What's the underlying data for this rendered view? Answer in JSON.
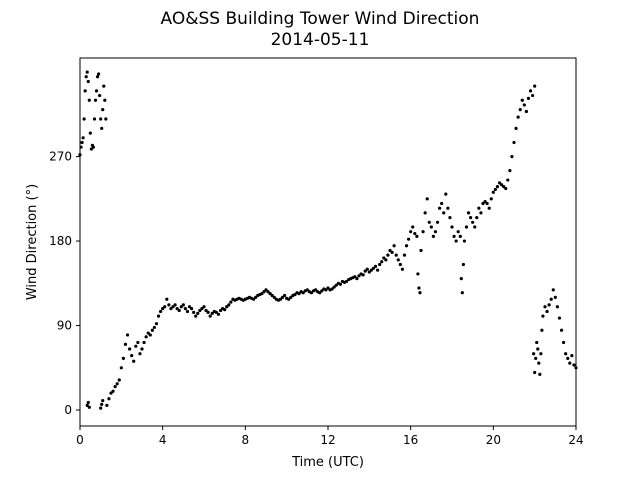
{
  "chart_data": {
    "type": "scatter",
    "title": "AO&SS Building Tower Wind Direction",
    "subtitle": "2014-05-11",
    "xlabel": "Time (UTC)",
    "ylabel": "Wind Direction (°)",
    "xlim": [
      0,
      24
    ],
    "ylim": [
      -17,
      375
    ],
    "xticks": [
      0,
      4,
      8,
      12,
      16,
      20,
      24
    ],
    "xtick_labels": [
      "0",
      "4",
      "8",
      "12",
      "16",
      "20",
      "24"
    ],
    "yticks": [
      0,
      90,
      180,
      270
    ],
    "ytick_labels": [
      "0",
      "90",
      "180",
      "270"
    ],
    "grid": false,
    "marker_color": "#000000",
    "points": [
      [
        0.0,
        272
      ],
      [
        0.05,
        280
      ],
      [
        0.1,
        285
      ],
      [
        0.15,
        290
      ],
      [
        0.2,
        310
      ],
      [
        0.25,
        340
      ],
      [
        0.3,
        355
      ],
      [
        0.35,
        360
      ],
      [
        0.4,
        350
      ],
      [
        0.45,
        330
      ],
      [
        0.5,
        295
      ],
      [
        0.55,
        278
      ],
      [
        0.6,
        282
      ],
      [
        0.65,
        280
      ],
      [
        0.7,
        310
      ],
      [
        0.75,
        330
      ],
      [
        0.8,
        340
      ],
      [
        0.85,
        355
      ],
      [
        0.9,
        358
      ],
      [
        0.95,
        335
      ],
      [
        1.0,
        310
      ],
      [
        1.05,
        300
      ],
      [
        1.1,
        320
      ],
      [
        1.15,
        345
      ],
      [
        1.2,
        330
      ],
      [
        1.25,
        310
      ],
      [
        0.35,
        5
      ],
      [
        0.4,
        8
      ],
      [
        0.45,
        3
      ],
      [
        1.0,
        2
      ],
      [
        1.05,
        6
      ],
      [
        1.1,
        10
      ],
      [
        1.3,
        5
      ],
      [
        1.4,
        12
      ],
      [
        1.5,
        18
      ],
      [
        1.6,
        20
      ],
      [
        1.7,
        25
      ],
      [
        1.8,
        28
      ],
      [
        1.9,
        32
      ],
      [
        2.0,
        45
      ],
      [
        2.1,
        55
      ],
      [
        2.2,
        70
      ],
      [
        2.3,
        80
      ],
      [
        2.4,
        65
      ],
      [
        2.5,
        58
      ],
      [
        2.6,
        52
      ],
      [
        2.7,
        68
      ],
      [
        2.8,
        72
      ],
      [
        2.9,
        60
      ],
      [
        3.0,
        65
      ],
      [
        3.1,
        72
      ],
      [
        3.2,
        78
      ],
      [
        3.3,
        82
      ],
      [
        3.4,
        80
      ],
      [
        3.5,
        85
      ],
      [
        3.6,
        88
      ],
      [
        3.7,
        92
      ],
      [
        3.8,
        100
      ],
      [
        3.9,
        105
      ],
      [
        4.0,
        108
      ],
      [
        4.1,
        110
      ],
      [
        4.2,
        118
      ],
      [
        4.3,
        112
      ],
      [
        4.4,
        108
      ],
      [
        4.5,
        110
      ],
      [
        4.6,
        112
      ],
      [
        4.7,
        108
      ],
      [
        4.8,
        106
      ],
      [
        4.9,
        110
      ],
      [
        5.0,
        112
      ],
      [
        5.1,
        108
      ],
      [
        5.2,
        105
      ],
      [
        5.3,
        110
      ],
      [
        5.4,
        108
      ],
      [
        5.5,
        104
      ],
      [
        5.6,
        100
      ],
      [
        5.7,
        103
      ],
      [
        5.8,
        106
      ],
      [
        5.9,
        108
      ],
      [
        6.0,
        110
      ],
      [
        6.1,
        106
      ],
      [
        6.2,
        104
      ],
      [
        6.3,
        100
      ],
      [
        6.4,
        103
      ],
      [
        6.5,
        105
      ],
      [
        6.6,
        104
      ],
      [
        6.7,
        102
      ],
      [
        6.8,
        106
      ],
      [
        6.9,
        108
      ],
      [
        7.0,
        107
      ],
      [
        7.1,
        110
      ],
      [
        7.2,
        112
      ],
      [
        7.3,
        115
      ],
      [
        7.4,
        118
      ],
      [
        7.5,
        117
      ],
      [
        7.6,
        118
      ],
      [
        7.7,
        119
      ],
      [
        7.8,
        118
      ],
      [
        7.9,
        117
      ],
      [
        8.0,
        118
      ],
      [
        8.1,
        119
      ],
      [
        8.2,
        120
      ],
      [
        8.3,
        119
      ],
      [
        8.4,
        118
      ],
      [
        8.5,
        120
      ],
      [
        8.6,
        122
      ],
      [
        8.7,
        123
      ],
      [
        8.8,
        124
      ],
      [
        8.9,
        126
      ],
      [
        9.0,
        128
      ],
      [
        9.1,
        126
      ],
      [
        9.2,
        124
      ],
      [
        9.3,
        122
      ],
      [
        9.4,
        120
      ],
      [
        9.5,
        118
      ],
      [
        9.6,
        117
      ],
      [
        9.7,
        118
      ],
      [
        9.8,
        120
      ],
      [
        9.9,
        122
      ],
      [
        10.0,
        119
      ],
      [
        10.1,
        118
      ],
      [
        10.2,
        120
      ],
      [
        10.3,
        122
      ],
      [
        10.4,
        123
      ],
      [
        10.5,
        125
      ],
      [
        10.6,
        124
      ],
      [
        10.7,
        126
      ],
      [
        10.8,
        125
      ],
      [
        10.9,
        127
      ],
      [
        11.0,
        128
      ],
      [
        11.1,
        126
      ],
      [
        11.2,
        125
      ],
      [
        11.3,
        127
      ],
      [
        11.4,
        128
      ],
      [
        11.5,
        126
      ],
      [
        11.6,
        125
      ],
      [
        11.7,
        127
      ],
      [
        11.8,
        129
      ],
      [
        11.9,
        128
      ],
      [
        12.0,
        130
      ],
      [
        12.1,
        128
      ],
      [
        12.2,
        129
      ],
      [
        12.3,
        131
      ],
      [
        12.4,
        133
      ],
      [
        12.5,
        135
      ],
      [
        12.6,
        134
      ],
      [
        12.7,
        137
      ],
      [
        12.8,
        136
      ],
      [
        12.9,
        137
      ],
      [
        13.0,
        139
      ],
      [
        13.1,
        140
      ],
      [
        13.2,
        141
      ],
      [
        13.3,
        142
      ],
      [
        13.4,
        140
      ],
      [
        13.5,
        143
      ],
      [
        13.6,
        145
      ],
      [
        13.7,
        144
      ],
      [
        13.8,
        148
      ],
      [
        13.9,
        150
      ],
      [
        14.0,
        147
      ],
      [
        14.1,
        149
      ],
      [
        14.2,
        151
      ],
      [
        14.3,
        153
      ],
      [
        14.4,
        149
      ],
      [
        14.5,
        155
      ],
      [
        14.6,
        158
      ],
      [
        14.7,
        162
      ],
      [
        14.8,
        160
      ],
      [
        14.9,
        165
      ],
      [
        15.0,
        170
      ],
      [
        15.1,
        168
      ],
      [
        15.2,
        175
      ],
      [
        15.3,
        165
      ],
      [
        15.4,
        160
      ],
      [
        15.5,
        155
      ],
      [
        15.6,
        150
      ],
      [
        15.7,
        165
      ],
      [
        15.8,
        175
      ],
      [
        15.9,
        182
      ],
      [
        16.0,
        190
      ],
      [
        16.1,
        195
      ],
      [
        16.2,
        188
      ],
      [
        16.3,
        185
      ],
      [
        16.35,
        145
      ],
      [
        16.4,
        130
      ],
      [
        16.45,
        125
      ],
      [
        16.5,
        170
      ],
      [
        16.6,
        190
      ],
      [
        16.7,
        210
      ],
      [
        16.8,
        225
      ],
      [
        16.9,
        200
      ],
      [
        17.0,
        195
      ],
      [
        17.1,
        185
      ],
      [
        17.2,
        190
      ],
      [
        17.3,
        200
      ],
      [
        17.4,
        215
      ],
      [
        17.5,
        220
      ],
      [
        17.6,
        210
      ],
      [
        17.7,
        230
      ],
      [
        17.8,
        215
      ],
      [
        17.9,
        205
      ],
      [
        18.0,
        195
      ],
      [
        18.1,
        185
      ],
      [
        18.2,
        180
      ],
      [
        18.3,
        190
      ],
      [
        18.4,
        185
      ],
      [
        18.45,
        140
      ],
      [
        18.5,
        125
      ],
      [
        18.55,
        155
      ],
      [
        18.6,
        180
      ],
      [
        18.7,
        195
      ],
      [
        18.8,
        210
      ],
      [
        18.9,
        205
      ],
      [
        19.0,
        200
      ],
      [
        19.1,
        195
      ],
      [
        19.2,
        205
      ],
      [
        19.3,
        215
      ],
      [
        19.4,
        210
      ],
      [
        19.5,
        220
      ],
      [
        19.6,
        222
      ],
      [
        19.7,
        220
      ],
      [
        19.8,
        215
      ],
      [
        19.9,
        225
      ],
      [
        20.0,
        232
      ],
      [
        20.1,
        235
      ],
      [
        20.2,
        238
      ],
      [
        20.3,
        242
      ],
      [
        20.4,
        240
      ],
      [
        20.5,
        238
      ],
      [
        20.6,
        236
      ],
      [
        20.7,
        245
      ],
      [
        20.8,
        255
      ],
      [
        20.9,
        270
      ],
      [
        21.0,
        285
      ],
      [
        21.1,
        300
      ],
      [
        21.2,
        312
      ],
      [
        21.3,
        320
      ],
      [
        21.4,
        330
      ],
      [
        21.5,
        325
      ],
      [
        21.6,
        318
      ],
      [
        21.7,
        332
      ],
      [
        21.8,
        340
      ],
      [
        21.9,
        335
      ],
      [
        22.0,
        345
      ],
      [
        21.95,
        60
      ],
      [
        22.0,
        40
      ],
      [
        22.05,
        55
      ],
      [
        22.1,
        72
      ],
      [
        22.15,
        65
      ],
      [
        22.2,
        50
      ],
      [
        22.25,
        38
      ],
      [
        22.3,
        60
      ],
      [
        22.35,
        85
      ],
      [
        22.4,
        100
      ],
      [
        22.5,
        110
      ],
      [
        22.6,
        105
      ],
      [
        22.7,
        112
      ],
      [
        22.8,
        118
      ],
      [
        22.9,
        128
      ],
      [
        23.0,
        120
      ],
      [
        23.1,
        110
      ],
      [
        23.2,
        98
      ],
      [
        23.3,
        85
      ],
      [
        23.4,
        72
      ],
      [
        23.5,
        60
      ],
      [
        23.6,
        55
      ],
      [
        23.7,
        50
      ],
      [
        23.8,
        58
      ],
      [
        23.9,
        48
      ],
      [
        24.0,
        45
      ]
    ]
  }
}
